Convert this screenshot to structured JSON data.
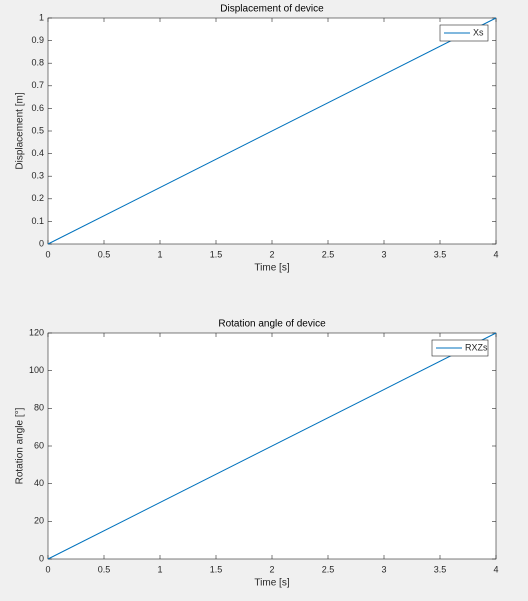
{
  "chart_data": [
    {
      "type": "line",
      "title": "Displacement of device",
      "xlabel": "Time [s]",
      "ylabel": "Displacement [m]",
      "x": [
        0,
        4
      ],
      "series": [
        {
          "name": "Xs",
          "color": "#0072bd",
          "values": [
            0,
            1
          ]
        }
      ],
      "xlim": [
        0,
        4
      ],
      "xticks": [
        0,
        0.5,
        1,
        1.5,
        2,
        2.5,
        3,
        3.5,
        4
      ],
      "ylim": [
        0,
        1
      ],
      "yticks": [
        0,
        0.1,
        0.2,
        0.3,
        0.4,
        0.5,
        0.6,
        0.7,
        0.8,
        0.9,
        1
      ],
      "grid": false,
      "legend": "northeast"
    },
    {
      "type": "line",
      "title": "Rotation angle of device",
      "xlabel": "Time [s]",
      "ylabel": "Rotation angle [°]",
      "x": [
        0,
        4
      ],
      "series": [
        {
          "name": "RXZs",
          "color": "#0072bd",
          "values": [
            0,
            120
          ]
        }
      ],
      "xlim": [
        0,
        4
      ],
      "xticks": [
        0,
        0.5,
        1,
        1.5,
        2,
        2.5,
        3,
        3.5,
        4
      ],
      "ylim": [
        0,
        120
      ],
      "yticks": [
        0,
        20,
        40,
        60,
        80,
        100,
        120
      ],
      "grid": false,
      "legend": "northeast"
    }
  ]
}
